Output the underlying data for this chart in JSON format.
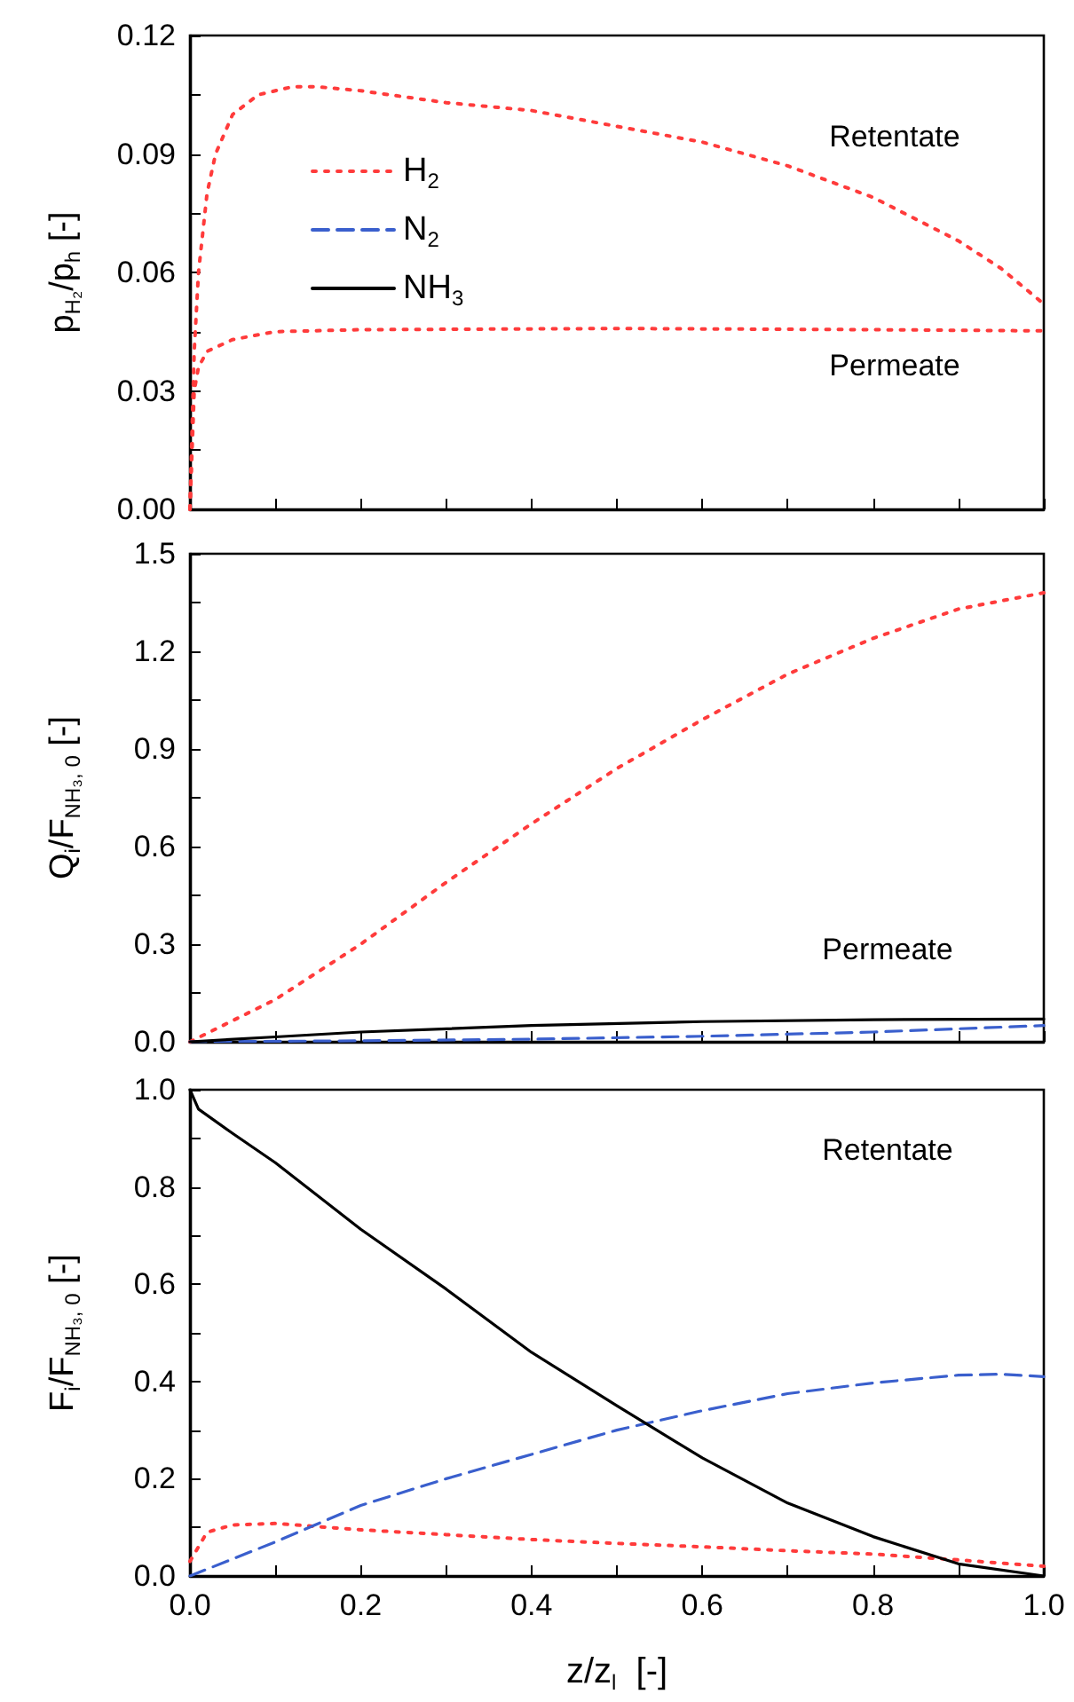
{
  "chart_data": [
    {
      "type": "line",
      "ylabel": "p$_{H₂}$/p$_{h}$ [-]",
      "xlim": [
        0,
        1
      ],
      "xticks": [
        {
          "value": 0,
          "label": null
        },
        {
          "value": 0.1,
          "label": null
        },
        {
          "value": 0.2,
          "label": null
        },
        {
          "value": 0.3,
          "label": null
        },
        {
          "value": 0.4,
          "label": null
        },
        {
          "value": 0.5,
          "label": null
        },
        {
          "value": 0.6,
          "label": null
        },
        {
          "value": 0.7,
          "label": null
        },
        {
          "value": 0.8,
          "label": null
        },
        {
          "value": 0.9,
          "label": null
        },
        {
          "value": 1,
          "label": null
        }
      ],
      "ylim": [
        0,
        0.12
      ],
      "yticks": [
        {
          "value": 0,
          "label": "0.00"
        },
        {
          "value": 0.015,
          "label": null
        },
        {
          "value": 0.03,
          "label": "0.03"
        },
        {
          "value": 0.045,
          "label": null
        },
        {
          "value": 0.06,
          "label": "0.06"
        },
        {
          "value": 0.075,
          "label": null
        },
        {
          "value": 0.09,
          "label": "0.09"
        },
        {
          "value": 0.105,
          "label": null
        },
        {
          "value": 0.12,
          "label": "0.12"
        }
      ],
      "tick_labels": "y",
      "grid": false,
      "legend": "top left",
      "marker": "none",
      "annotations": [
        "Retentate",
        "Permeate"
      ],
      "series": [
        {
          "name": "H$_{2}$",
          "color": "#ff3b3b",
          "line_style": "dotted",
          "x": [
            0,
            0.005,
            0.01,
            0.02,
            0.03,
            0.05,
            0.08,
            0.12,
            0.15,
            0.2,
            0.3,
            0.4,
            0.5,
            0.6,
            0.7,
            0.8,
            0.9,
            0.95,
            1.0
          ],
          "values": [
            0,
            0.04,
            0.06,
            0.08,
            0.09,
            0.1,
            0.105,
            0.107,
            0.107,
            0.106,
            0.103,
            0.101,
            0.097,
            0.093,
            0.087,
            0.079,
            0.068,
            0.061,
            0.052
          ]
        },
        {
          "color": "#ff3b3b",
          "line_style": "dotted",
          "x": [
            0,
            0.005,
            0.01,
            0.02,
            0.05,
            0.1,
            0.2,
            0.5,
            0.8,
            1.0
          ],
          "values": [
            0,
            0.03,
            0.036,
            0.04,
            0.043,
            0.045,
            0.0455,
            0.0458,
            0.0455,
            0.0452
          ]
        },
        {
          "name": "N$_{2}$",
          "color": "#3a5fcd",
          "line_style": "dashed"
        },
        {
          "name": "NH$_{3}$",
          "color": "#000000",
          "line_style": "solid"
        }
      ]
    },
    {
      "type": "line",
      "ylabel": "Q$_{i}$/F$_{NH₃, 0}$ [-]",
      "xlim": [
        0,
        1
      ],
      "xticks": [
        {
          "value": 0,
          "label": null
        },
        {
          "value": 0.1,
          "label": null
        },
        {
          "value": 0.2,
          "label": null
        },
        {
          "value": 0.3,
          "label": null
        },
        {
          "value": 0.4,
          "label": null
        },
        {
          "value": 0.5,
          "label": null
        },
        {
          "value": 0.6,
          "label": null
        },
        {
          "value": 0.7,
          "label": null
        },
        {
          "value": 0.8,
          "label": null
        },
        {
          "value": 0.9,
          "label": null
        },
        {
          "value": 1,
          "label": null
        }
      ],
      "ylim": [
        0,
        1.5
      ],
      "yticks": [
        {
          "value": 0,
          "label": "0.0"
        },
        {
          "value": 0.15,
          "label": null
        },
        {
          "value": 0.3,
          "label": "0.3"
        },
        {
          "value": 0.45,
          "label": null
        },
        {
          "value": 0.6,
          "label": "0.6"
        },
        {
          "value": 0.75,
          "label": null
        },
        {
          "value": 0.9,
          "label": "0.9"
        },
        {
          "value": 1.05,
          "label": null
        },
        {
          "value": 1.2,
          "label": "1.2"
        },
        {
          "value": 1.35,
          "label": null
        },
        {
          "value": 1.5,
          "label": "1.5"
        }
      ],
      "tick_labels": "y",
      "grid": false,
      "marker": "none",
      "annotations": [
        "Permeate"
      ],
      "series": [
        {
          "color": "#ff3b3b",
          "line_style": "dotted",
          "x": [
            0,
            0.1,
            0.2,
            0.3,
            0.4,
            0.5,
            0.6,
            0.7,
            0.8,
            0.9,
            1.0
          ],
          "values": [
            0,
            0.13,
            0.3,
            0.49,
            0.67,
            0.84,
            0.99,
            1.13,
            1.24,
            1.33,
            1.38
          ]
        },
        {
          "color": "#3a5fcd",
          "line_style": "dashed",
          "x": [
            0,
            0.2,
            0.4,
            0.6,
            0.8,
            1.0
          ],
          "values": [
            0,
            0.003,
            0.008,
            0.017,
            0.03,
            0.05
          ]
        },
        {
          "color": "#000000",
          "line_style": "solid",
          "x": [
            0,
            0.1,
            0.2,
            0.4,
            0.6,
            0.8,
            1.0
          ],
          "values": [
            0,
            0.015,
            0.03,
            0.05,
            0.062,
            0.068,
            0.07
          ]
        }
      ]
    },
    {
      "type": "line",
      "ylabel": "F$_{i}$/F$_{NH₃, 0}$ [-]",
      "xlabel": "z/z$_{l}$  [-]",
      "xlim": [
        0,
        1
      ],
      "xticks": [
        {
          "value": 0,
          "label": "0.0"
        },
        {
          "value": 0.1,
          "label": null
        },
        {
          "value": 0.2,
          "label": "0.2"
        },
        {
          "value": 0.3,
          "label": null
        },
        {
          "value": 0.4,
          "label": "0.4"
        },
        {
          "value": 0.5,
          "label": null
        },
        {
          "value": 0.6,
          "label": "0.6"
        },
        {
          "value": 0.7,
          "label": null
        },
        {
          "value": 0.8,
          "label": "0.8"
        },
        {
          "value": 0.9,
          "label": null
        },
        {
          "value": 1,
          "label": "1.0"
        }
      ],
      "ylim": [
        0,
        1
      ],
      "yticks": [
        {
          "value": 0,
          "label": "0.0"
        },
        {
          "value": 0.1,
          "label": null
        },
        {
          "value": 0.2,
          "label": "0.2"
        },
        {
          "value": 0.3,
          "label": null
        },
        {
          "value": 0.4,
          "label": "0.4"
        },
        {
          "value": 0.5,
          "label": null
        },
        {
          "value": 0.6,
          "label": "0.6"
        },
        {
          "value": 0.7,
          "label": null
        },
        {
          "value": 0.8,
          "label": "0.8"
        },
        {
          "value": 0.9,
          "label": null
        },
        {
          "value": 1,
          "label": "1.0"
        }
      ],
      "grid": false,
      "marker": "none",
      "annotations": [
        "Retentate"
      ],
      "series": [
        {
          "color": "#ff3b3b",
          "line_style": "dotted",
          "x": [
            0,
            0.02,
            0.05,
            0.1,
            0.2,
            0.3,
            0.4,
            0.5,
            0.6,
            0.7,
            0.8,
            0.9,
            1.0
          ],
          "values": [
            0.03,
            0.09,
            0.105,
            0.108,
            0.095,
            0.085,
            0.075,
            0.067,
            0.06,
            0.052,
            0.045,
            0.033,
            0.02
          ]
        },
        {
          "color": "#3a5fcd",
          "line_style": "dashed",
          "x": [
            0,
            0.1,
            0.2,
            0.3,
            0.4,
            0.5,
            0.6,
            0.7,
            0.8,
            0.9,
            0.95,
            1.0
          ],
          "values": [
            0,
            0.07,
            0.145,
            0.2,
            0.25,
            0.3,
            0.34,
            0.375,
            0.397,
            0.413,
            0.415,
            0.41
          ]
        },
        {
          "color": "#000000",
          "line_style": "solid",
          "x": [
            0,
            0.01,
            0.05,
            0.1,
            0.2,
            0.3,
            0.4,
            0.5,
            0.6,
            0.7,
            0.8,
            0.9,
            1.0
          ],
          "values": [
            1.0,
            0.96,
            0.91,
            0.85,
            0.713,
            0.59,
            0.46,
            0.35,
            0.243,
            0.15,
            0.081,
            0.025,
            0
          ]
        }
      ]
    }
  ]
}
